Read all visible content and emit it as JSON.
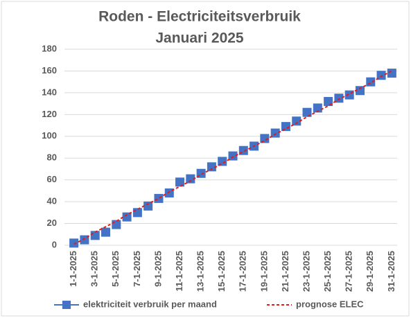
{
  "chart_data": {
    "type": "line",
    "title": [
      "Roden - Electriciteitsverbruik",
      "Januari 2025"
    ],
    "categories": [
      "1-1-2025",
      null,
      "3-1-2025",
      null,
      "5-1-2025",
      null,
      "7-1-2025",
      null,
      "9-1-2025",
      null,
      "11-1-2025",
      null,
      "13-1-2025",
      null,
      "15-1-2025",
      null,
      "17-1-2025",
      null,
      "19-1-2025",
      null,
      "21-1-2025",
      null,
      "23-1-2025",
      null,
      "25-1-2025",
      null,
      "27-1-2025",
      null,
      "29-1-2025",
      null,
      "31-1-2025"
    ],
    "series": [
      {
        "name": "elektriciteit verbruik per maand",
        "color": "#4472c4",
        "marker": "square",
        "values": [
          2,
          5,
          9,
          12,
          19,
          26,
          30,
          36,
          43,
          48,
          58,
          61,
          66,
          72,
          77,
          82,
          87,
          91,
          98,
          103,
          109,
          114,
          122,
          126,
          132,
          135,
          138,
          142,
          150,
          156,
          158
        ]
      },
      {
        "name": "prognose ELEC",
        "color": "#e31a1c",
        "dash": true,
        "values": [
          1,
          6,
          12,
          17,
          22,
          28,
          33,
          38,
          43,
          49,
          54,
          59,
          65,
          70,
          75,
          81,
          86,
          91,
          96,
          102,
          107,
          112,
          118,
          123,
          128,
          134,
          139,
          144,
          149,
          155,
          160
        ]
      }
    ],
    "ylim": [
      0,
      180
    ],
    "yticks": [
      0,
      20,
      40,
      60,
      80,
      100,
      120,
      140,
      160,
      180
    ],
    "grid": true,
    "legend": "bottom"
  }
}
